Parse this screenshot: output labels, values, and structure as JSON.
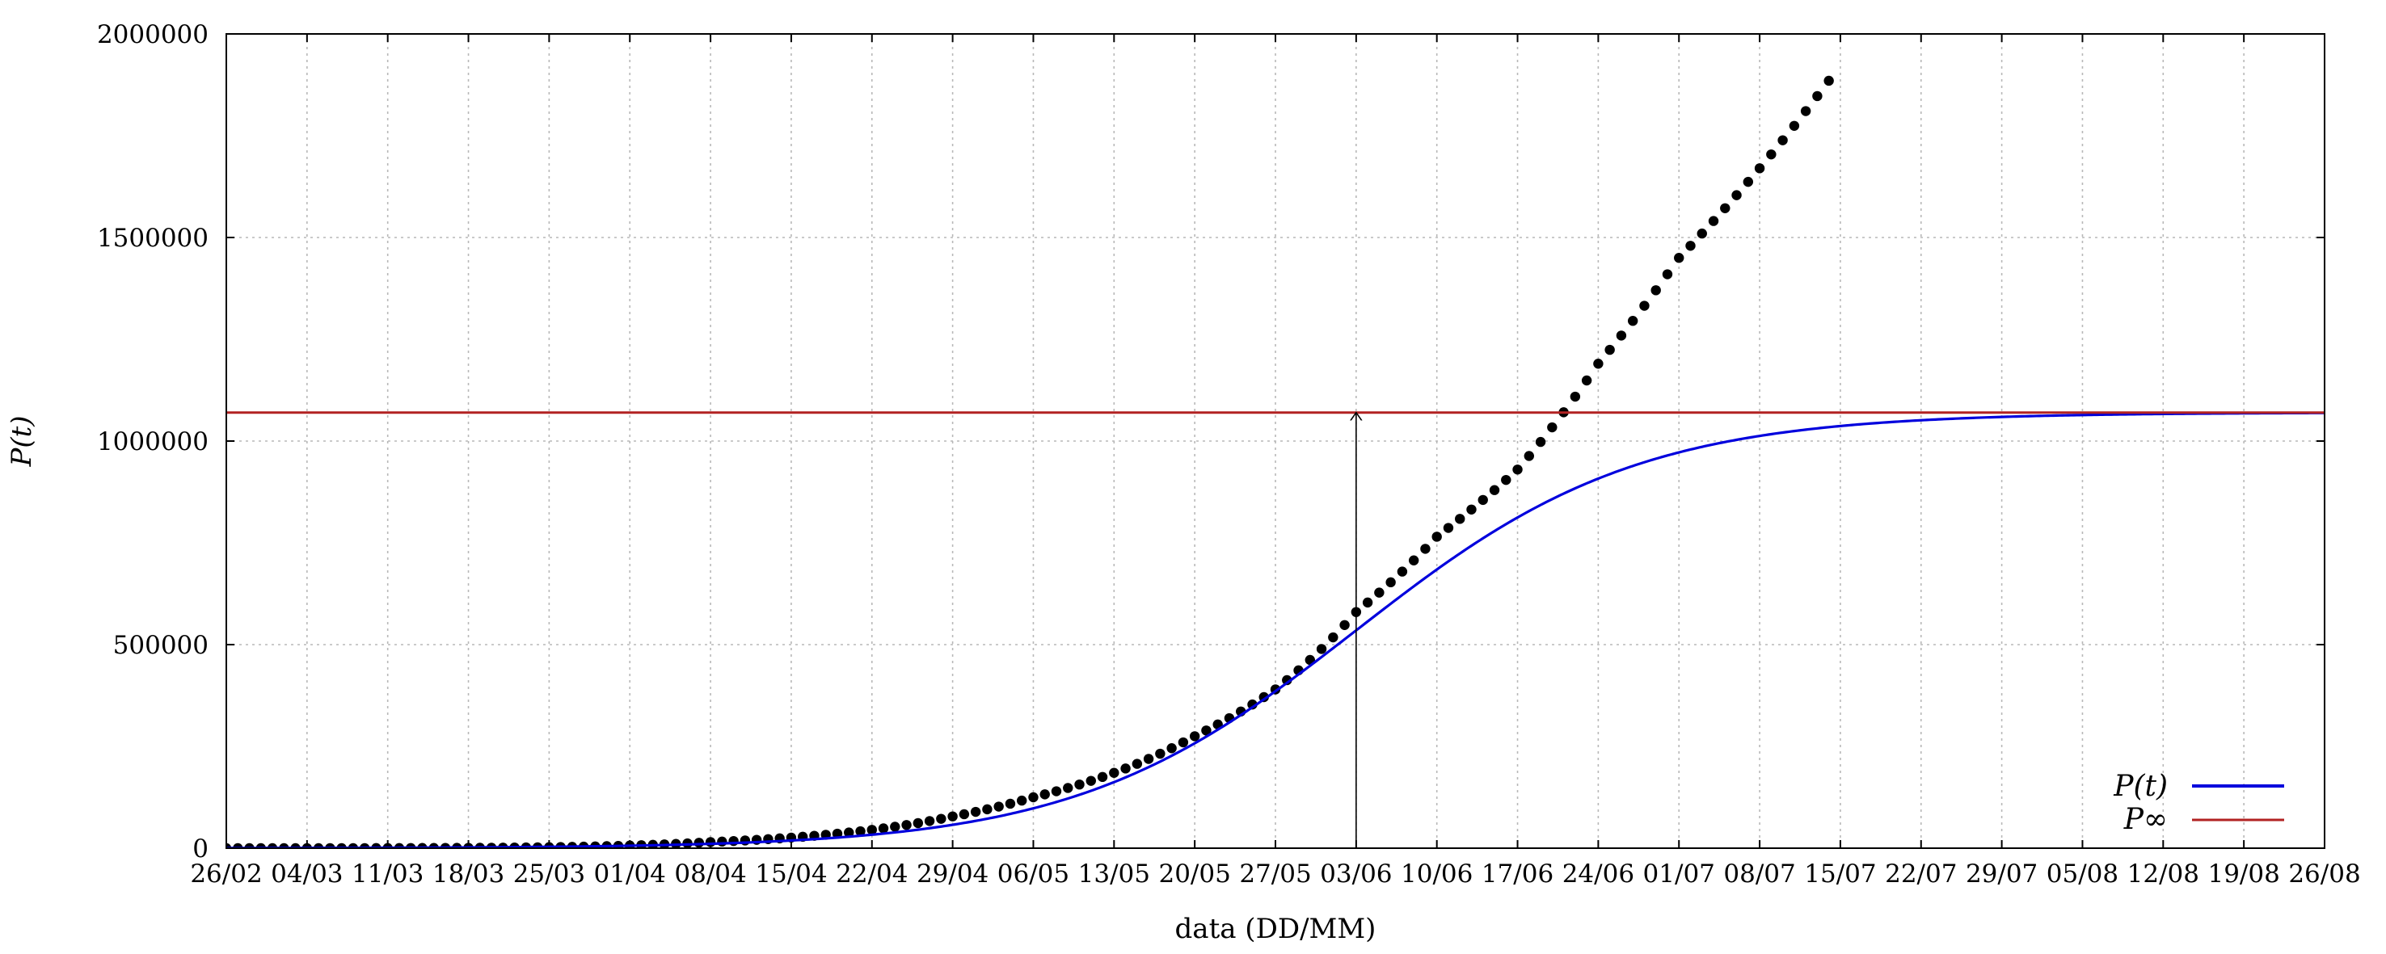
{
  "chart_data": {
    "type": "line",
    "ylabel": "P(t)",
    "xlabel": "data (DD/MM)",
    "x_type": "date",
    "year": 2020,
    "xlim": [
      "2020-02-26",
      "2020-08-26"
    ],
    "ylim": [
      0,
      2000000
    ],
    "x_ticks": [
      "26/02",
      "04/03",
      "11/03",
      "18/03",
      "25/03",
      "01/04",
      "08/04",
      "15/04",
      "22/04",
      "29/04",
      "06/05",
      "13/05",
      "20/05",
      "27/05",
      "03/06",
      "10/06",
      "17/06",
      "24/06",
      "01/07",
      "08/07",
      "15/07",
      "22/07",
      "29/07",
      "05/08",
      "12/08",
      "19/08",
      "26/08"
    ],
    "y_ticks": [
      "0",
      "500000",
      "1000000",
      "1500000",
      "2000000"
    ],
    "grid": true,
    "legend_position": "bottom-right",
    "colors": {
      "observed": "#000000",
      "model": "#0000dd",
      "asymptote": "#b22222",
      "arrow": "#000000"
    },
    "series": [
      {
        "kind": "scatter",
        "start_date": "2020-02-26",
        "end_date": "2020-07-14",
        "anchors": [
          [
            "2020-02-26",
            0
          ],
          [
            "2020-03-11",
            300
          ],
          [
            "2020-03-25",
            2500
          ],
          [
            "2020-04-01",
            6500
          ],
          [
            "2020-04-08",
            15000
          ],
          [
            "2020-04-15",
            26000
          ],
          [
            "2020-04-22",
            45000
          ],
          [
            "2020-04-29",
            78000
          ],
          [
            "2020-05-06",
            125000
          ],
          [
            "2020-05-13",
            185000
          ],
          [
            "2020-05-20",
            275000
          ],
          [
            "2020-05-27",
            390000
          ],
          [
            "2020-06-03",
            580000
          ],
          [
            "2020-06-10",
            765000
          ],
          [
            "2020-06-17",
            930000
          ],
          [
            "2020-06-24",
            1190000
          ],
          [
            "2020-07-01",
            1450000
          ],
          [
            "2020-07-08",
            1670000
          ],
          [
            "2020-07-14",
            1885000
          ]
        ]
      },
      {
        "name": "P(t)",
        "kind": "line",
        "model": "logistic",
        "P_inf": 1070000,
        "midpoint_date": "2020-06-03",
        "rate_per_day": 0.082,
        "start_date": "2020-02-26",
        "end_date": "2020-08-26"
      },
      {
        "name": "P∞",
        "kind": "hline",
        "y": 1070000
      }
    ],
    "annotations": [
      {
        "type": "arrow",
        "x": "2020-06-03",
        "y_from": 0,
        "y_to": 1070000
      }
    ]
  }
}
